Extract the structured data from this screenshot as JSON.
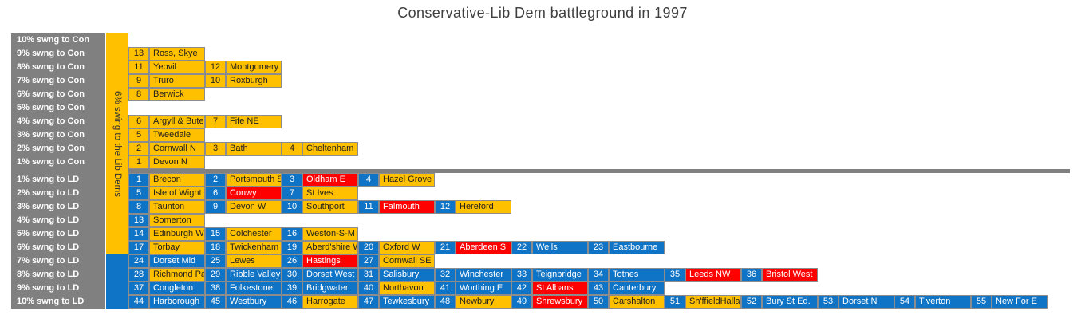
{
  "title": "Conservative-Lib Dem battleground in 1997",
  "swing_bar": {
    "label": "6% swing to the Lib Dems"
  },
  "colors": {
    "gold": "#FFC000",
    "blue": "#1074C6",
    "red": "#FF0000",
    "axis_gray": "#808080",
    "dark_text": "#1f1f1f",
    "light_text": "#ffffff"
  },
  "chart_data": {
    "type": "table",
    "title": "Conservative-Lib Dem battleground in 1997",
    "description_axis": "Rows are swing bands from 10% swing to Conservative down to 10% swing to Liberal Democrat; each cell pair is seat rank number plus constituency name; cell colour shows holding party (gold=LD/Con target mix, blue=Con-held, red=Lab-held).",
    "rows": [
      {
        "label": "10% swng to Con",
        "side": "con",
        "seats": []
      },
      {
        "label": "9% swng to Con",
        "side": "con",
        "seats": [
          {
            "rank": "13",
            "name": "Ross, Skye",
            "color": "gold"
          }
        ]
      },
      {
        "label": "8% swng to Con",
        "side": "con",
        "seats": [
          {
            "rank": "11",
            "name": "Yeovil",
            "color": "gold"
          },
          {
            "rank": "12",
            "name": "Montgomery",
            "color": "gold"
          }
        ]
      },
      {
        "label": "7% swng to Con",
        "side": "con",
        "seats": [
          {
            "rank": "9",
            "name": "Truro",
            "color": "gold"
          },
          {
            "rank": "10",
            "name": "Roxburgh",
            "color": "gold"
          }
        ]
      },
      {
        "label": "6% swng to Con",
        "side": "con",
        "seats": [
          {
            "rank": "8",
            "name": "Berwick",
            "color": "gold"
          }
        ]
      },
      {
        "label": "5% swng to Con",
        "side": "con",
        "seats": []
      },
      {
        "label": "4% swng to Con",
        "side": "con",
        "seats": [
          {
            "rank": "6",
            "name": "Argyll & Bute",
            "color": "gold"
          },
          {
            "rank": "7",
            "name": "Fife NE",
            "color": "gold"
          }
        ]
      },
      {
        "label": "3% swng to Con",
        "side": "con",
        "seats": [
          {
            "rank": "5",
            "name": "Tweedale",
            "color": "gold"
          }
        ]
      },
      {
        "label": "2% swng to Con",
        "side": "con",
        "seats": [
          {
            "rank": "2",
            "name": "Cornwall N",
            "color": "gold"
          },
          {
            "rank": "3",
            "name": "Bath",
            "color": "gold"
          },
          {
            "rank": "4",
            "name": "Cheltenham",
            "color": "gold"
          }
        ]
      },
      {
        "label": "1% swng to Con",
        "side": "con",
        "seats": [
          {
            "rank": "1",
            "name": "Devon N",
            "color": "gold"
          }
        ]
      },
      {
        "label": "1% swng to LD",
        "side": "ld",
        "seats": [
          {
            "rank": "1",
            "name": "Brecon",
            "color": "gold"
          },
          {
            "rank": "2",
            "name": "Portsmouth S",
            "color": "gold"
          },
          {
            "rank": "3",
            "name": "Oldham E",
            "color": "red"
          },
          {
            "rank": "4",
            "name": "Hazel Grove",
            "color": "gold"
          }
        ]
      },
      {
        "label": "2% swng to LD",
        "side": "ld",
        "seats": [
          {
            "rank": "5",
            "name": "Isle of Wight",
            "color": "gold"
          },
          {
            "rank": "6",
            "name": "Conwy",
            "color": "red"
          },
          {
            "rank": "7",
            "name": "St Ives",
            "color": "gold"
          }
        ]
      },
      {
        "label": "3% swng to LD",
        "side": "ld",
        "seats": [
          {
            "rank": "8",
            "name": "Taunton",
            "color": "gold"
          },
          {
            "rank": "9",
            "name": "Devon W",
            "color": "gold"
          },
          {
            "rank": "10",
            "name": "Southport",
            "color": "gold"
          },
          {
            "rank": "11",
            "name": "Falmouth",
            "color": "red"
          },
          {
            "rank": "12",
            "name": "Hereford",
            "color": "gold"
          }
        ]
      },
      {
        "label": "4% swng to LD",
        "side": "ld",
        "seats": [
          {
            "rank": "13",
            "name": "Somerton",
            "color": "gold"
          }
        ]
      },
      {
        "label": "5% swng to LD",
        "side": "ld",
        "seats": [
          {
            "rank": "14",
            "name": "Edinburgh W",
            "color": "gold"
          },
          {
            "rank": "15",
            "name": "Colchester",
            "color": "gold"
          },
          {
            "rank": "16",
            "name": "Weston-S-M",
            "color": "gold"
          }
        ]
      },
      {
        "label": "6% swng to LD",
        "side": "ld",
        "seats": [
          {
            "rank": "17",
            "name": "Torbay",
            "color": "gold"
          },
          {
            "rank": "18",
            "name": "Twickenham",
            "color": "gold"
          },
          {
            "rank": "19",
            "name": "Aberd'shire W",
            "color": "gold"
          },
          {
            "rank": "20",
            "name": "Oxford W",
            "color": "gold"
          },
          {
            "rank": "21",
            "name": "Aberdeen S",
            "color": "red"
          },
          {
            "rank": "22",
            "name": "Wells",
            "color": "blue"
          },
          {
            "rank": "23",
            "name": "Eastbourne",
            "color": "blue"
          }
        ]
      },
      {
        "label": "7% swng to LD",
        "side": "ld",
        "seats": [
          {
            "rank": "24",
            "name": "Dorset  Mid",
            "color": "blue"
          },
          {
            "rank": "25",
            "name": "Lewes",
            "color": "gold"
          },
          {
            "rank": "26",
            "name": "Hastings",
            "color": "red"
          },
          {
            "rank": "27",
            "name": "Cornwall SE",
            "color": "gold"
          }
        ]
      },
      {
        "label": "8% swng to LD",
        "side": "ld",
        "seats": [
          {
            "rank": "28",
            "name": "Richmond Park",
            "color": "gold"
          },
          {
            "rank": "29",
            "name": "Ribble Valley",
            "color": "blue"
          },
          {
            "rank": "30",
            "name": "Dorset West",
            "color": "blue"
          },
          {
            "rank": "31",
            "name": "Salisbury",
            "color": "blue"
          },
          {
            "rank": "32",
            "name": "Winchester",
            "color": "blue"
          },
          {
            "rank": "33",
            "name": "Teignbridge",
            "color": "blue"
          },
          {
            "rank": "34",
            "name": "Totnes",
            "color": "blue"
          },
          {
            "rank": "35",
            "name": "Leeds NW",
            "color": "red"
          },
          {
            "rank": "36",
            "name": "Bristol West",
            "color": "red"
          }
        ]
      },
      {
        "label": "9% swng to LD",
        "side": "ld",
        "seats": [
          {
            "rank": "37",
            "name": "Congleton",
            "color": "blue"
          },
          {
            "rank": "38",
            "name": "Folkestone",
            "color": "blue"
          },
          {
            "rank": "39",
            "name": "Bridgwater",
            "color": "blue"
          },
          {
            "rank": "40",
            "name": "Northavon",
            "color": "gold"
          },
          {
            "rank": "41",
            "name": "Worthing E",
            "color": "blue"
          },
          {
            "rank": "42",
            "name": "St Albans",
            "color": "red"
          },
          {
            "rank": "43",
            "name": "Canterbury",
            "color": "blue"
          }
        ]
      },
      {
        "label": "10% swng to LD",
        "side": "ld",
        "seats": [
          {
            "rank": "44",
            "name": "Harborough",
            "color": "blue"
          },
          {
            "rank": "45",
            "name": "Westbury",
            "color": "blue"
          },
          {
            "rank": "46",
            "name": "Harrogate",
            "color": "gold"
          },
          {
            "rank": "47",
            "name": "Tewkesbury",
            "color": "blue"
          },
          {
            "rank": "48",
            "name": "Newbury",
            "color": "gold"
          },
          {
            "rank": "49",
            "name": "Shrewsbury",
            "color": "red"
          },
          {
            "rank": "50",
            "name": "Carshalton",
            "color": "gold"
          },
          {
            "rank": "51",
            "name": "Sh'ffieldHallam",
            "color": "gold"
          },
          {
            "rank": "52",
            "name": "Bury St Ed.",
            "color": "blue"
          },
          {
            "rank": "53",
            "name": "Dorset N",
            "color": "blue"
          },
          {
            "rank": "54",
            "name": "Tiverton",
            "color": "blue"
          },
          {
            "rank": "55",
            "name": "New For E",
            "color": "blue"
          }
        ]
      }
    ]
  }
}
